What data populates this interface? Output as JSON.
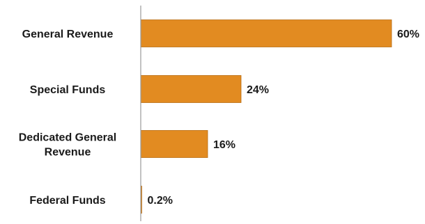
{
  "chart_data": {
    "type": "bar",
    "orientation": "horizontal",
    "categories": [
      [
        "General Revenue"
      ],
      [
        "Special Funds"
      ],
      [
        "Dedicated General",
        "Revenue"
      ],
      [
        "Federal Funds"
      ]
    ],
    "values": [
      60,
      24,
      16,
      0.2
    ],
    "data_labels": [
      "60%",
      "24%",
      "16%",
      "0.2%"
    ],
    "xlim": [
      0,
      60
    ],
    "grid": false,
    "legend": "none",
    "colors": {
      "bar": "#E28B21",
      "bar_stroke": "#B86C12",
      "axis": "#9a9a9a"
    }
  }
}
